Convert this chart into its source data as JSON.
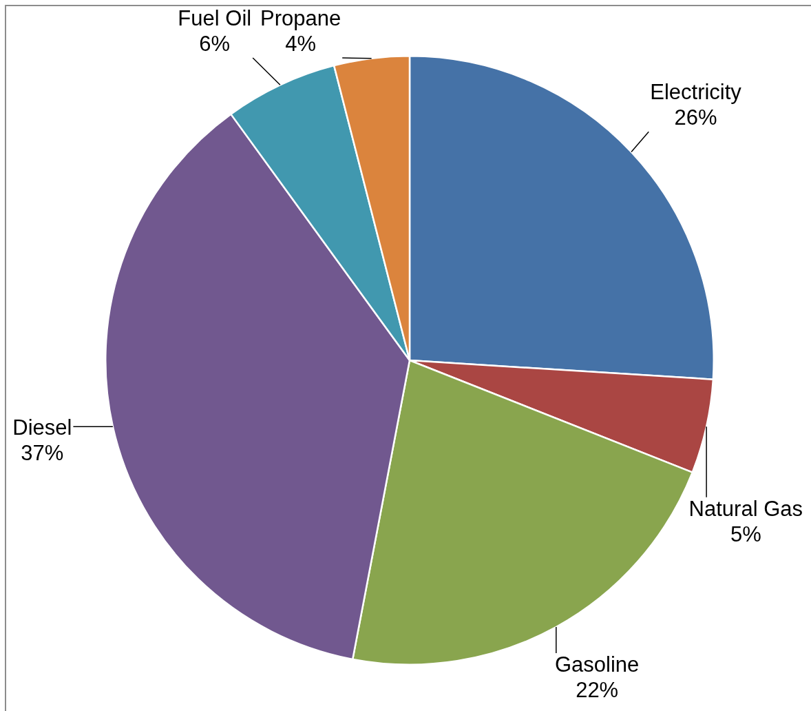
{
  "chart_data": {
    "type": "pie",
    "categories": [
      "Electricity",
      "Natural Gas",
      "Gasoline",
      "Diesel",
      "Fuel Oil",
      "Propane"
    ],
    "values": [
      26,
      5,
      22,
      37,
      6,
      4
    ],
    "colors": [
      "#4572a7",
      "#aa4643",
      "#89a54e",
      "#71588f",
      "#4198af",
      "#db843d"
    ],
    "value_labels": [
      "26%",
      "5%",
      "22%",
      "37%",
      "6%",
      "4%"
    ]
  }
}
